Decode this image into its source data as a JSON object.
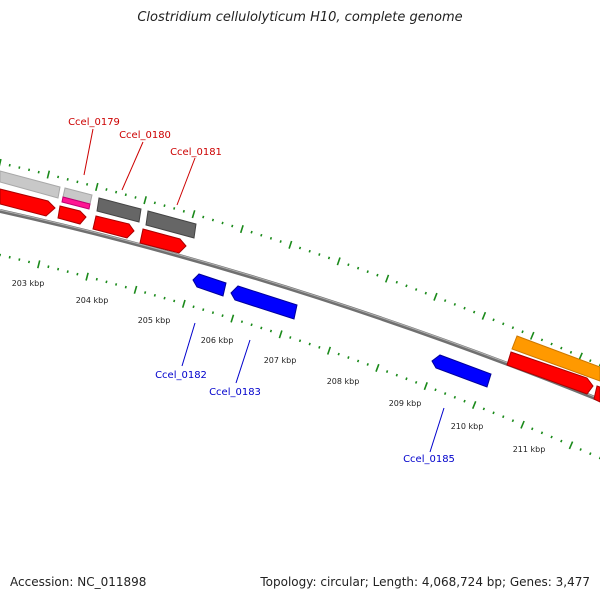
{
  "title": "Clostridium cellulolyticum H10, complete genome",
  "footer": {
    "accession": "Accession: NC_011898",
    "summary": "Topology: circular; Length: 4,068,724 bp; Genes: 3,477"
  },
  "colors": {
    "forward_cds": "#ff0000",
    "reverse_cds": "#0000ff",
    "grey_feature": "#666666",
    "light_feature": "#c8c8c8",
    "pink_feature": "#ff1493",
    "orange_feature": "#ff9900",
    "tick": "#1a8a1a",
    "backbone": "#808080",
    "forward_label": "#cc0000",
    "reverse_label": "#0000cc"
  },
  "scale_labels": [
    "203 kbp",
    "204 kbp",
    "205 kbp",
    "206 kbp",
    "207 kbp",
    "208 kbp",
    "209 kbp",
    "210 kbp",
    "211 kbp"
  ],
  "forward_labels": [
    "Ccel_0179",
    "Ccel_0180",
    "Ccel_0181"
  ],
  "reverse_labels": [
    "Ccel_0182",
    "Ccel_0183",
    "Ccel_0185"
  ]
}
